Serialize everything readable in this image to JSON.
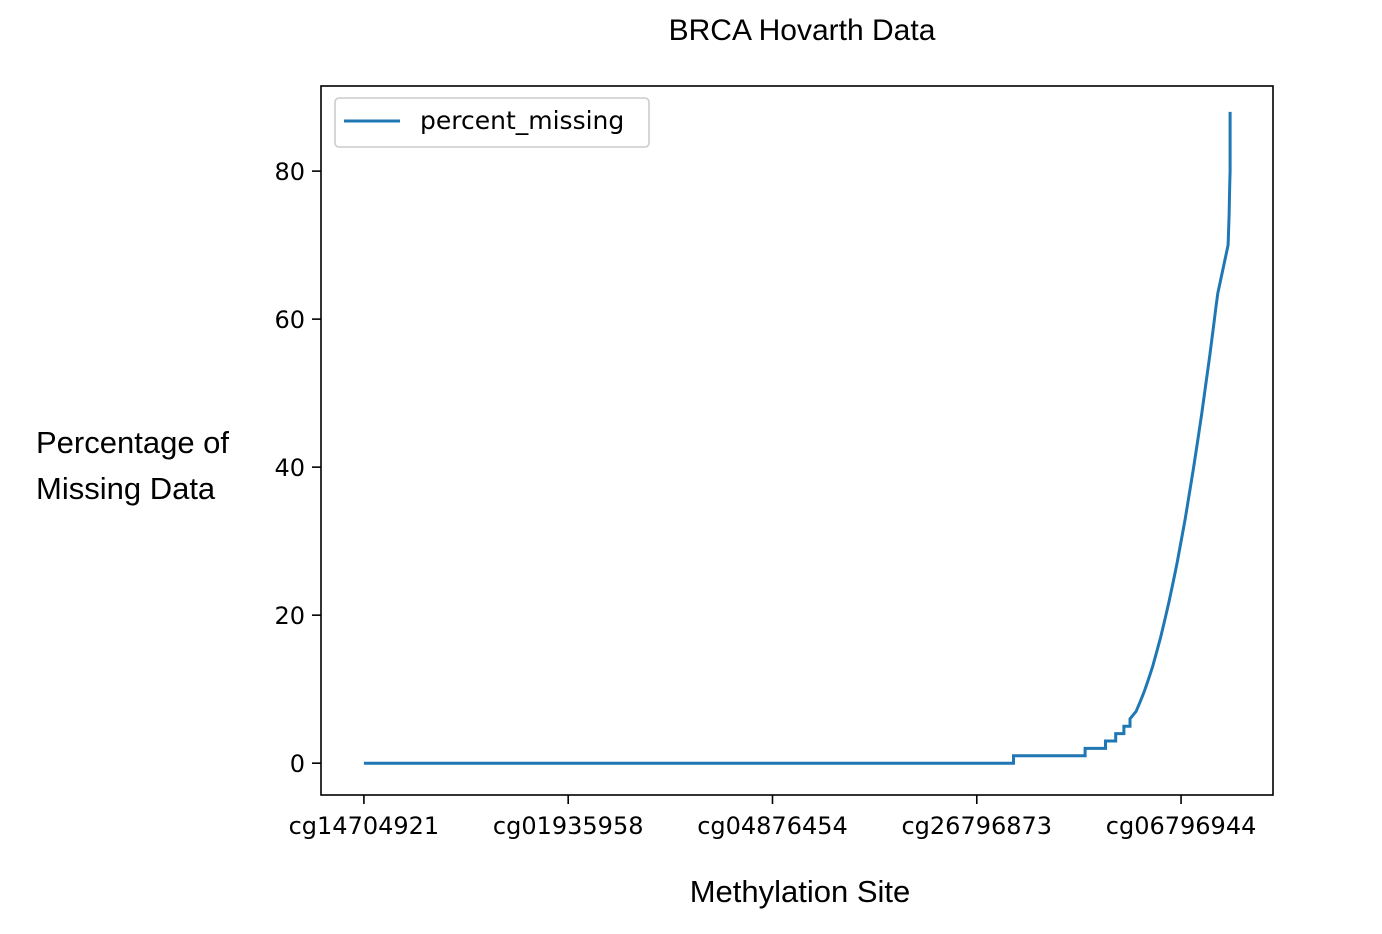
{
  "chart_data": {
    "type": "line",
    "title": "BRCA Hovarth Data",
    "xlabel": "Methylation Site",
    "ylabel_lines": [
      "Percentage of",
      "Missing Data"
    ],
    "legend": [
      "percent_missing"
    ],
    "legend_position": "top-left",
    "series_color": "#1f77b4",
    "x_tick_labels": [
      "cg14704921",
      "cg01935958",
      "cg04876454",
      "cg26796873",
      "cg06796944"
    ],
    "x_tick_index": [
      0,
      1,
      2,
      3,
      4
    ],
    "xlim": [
      -0.21,
      4.45
    ],
    "yticks": [
      0,
      20,
      40,
      60,
      80
    ],
    "ylim": [
      -4.3,
      91.5
    ],
    "grid": false,
    "series": [
      {
        "name": "percent_missing",
        "x": [
          0,
          3.18,
          3.18,
          3.53,
          3.53,
          3.63,
          3.63,
          3.68,
          3.68,
          3.72,
          3.72,
          3.75,
          3.75,
          3.78,
          3.8,
          3.82,
          3.84,
          3.86,
          3.88,
          3.9,
          3.92,
          3.94,
          3.96,
          3.98,
          4.0,
          4.02,
          4.04,
          4.06,
          4.08,
          4.1,
          4.12,
          4.14,
          4.16,
          4.17,
          4.18,
          4.23,
          4.235,
          4.238,
          4.24,
          4.24
        ],
        "y": [
          0,
          0,
          1,
          1,
          2,
          2,
          3,
          3,
          4,
          4,
          5,
          5,
          6,
          7,
          8.3,
          9.7,
          11.3,
          13.0,
          15.0,
          17.0,
          19.3,
          21.7,
          24.3,
          27.0,
          30.0,
          33.0,
          36.3,
          39.7,
          43.3,
          47.0,
          51.0,
          55.0,
          59.3,
          61.5,
          63.5,
          70,
          74,
          78,
          80,
          88
        ]
      }
    ]
  }
}
